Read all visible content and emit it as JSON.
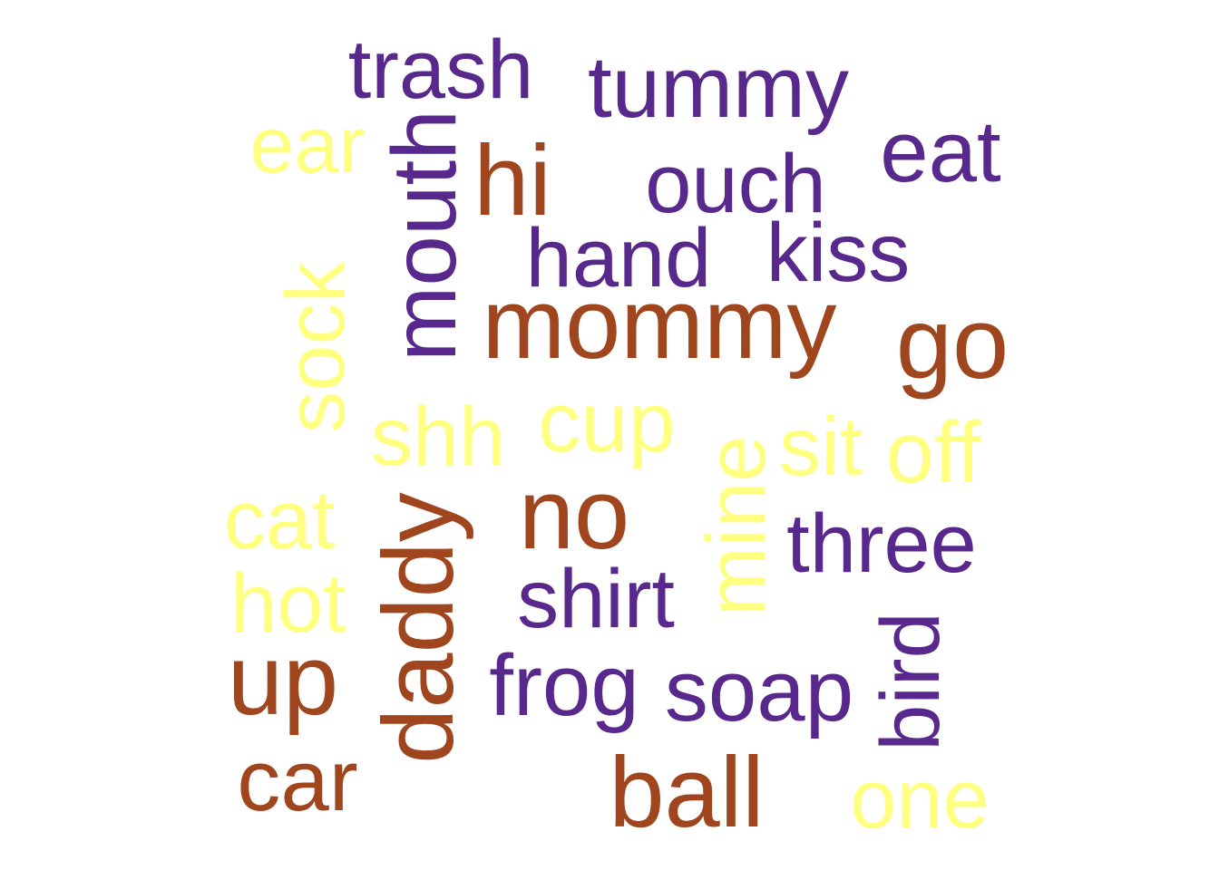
{
  "colors": {
    "purple": "#58288C",
    "brown": "#A0461E",
    "yellow": "#FFFF80"
  },
  "words": [
    {
      "text": "trash",
      "color": "purple"
    },
    {
      "text": "tummy",
      "color": "purple"
    },
    {
      "text": "ear",
      "color": "yellow"
    },
    {
      "text": "mouth",
      "color": "purple"
    },
    {
      "text": "hi",
      "color": "brown"
    },
    {
      "text": "ouch",
      "color": "purple"
    },
    {
      "text": "eat",
      "color": "purple"
    },
    {
      "text": "hand",
      "color": "purple"
    },
    {
      "text": "kiss",
      "color": "purple"
    },
    {
      "text": "sock",
      "color": "yellow"
    },
    {
      "text": "mommy",
      "color": "brown"
    },
    {
      "text": "go",
      "color": "brown"
    },
    {
      "text": "shh",
      "color": "yellow"
    },
    {
      "text": "cup",
      "color": "yellow"
    },
    {
      "text": "mine",
      "color": "yellow"
    },
    {
      "text": "sit",
      "color": "yellow"
    },
    {
      "text": "off",
      "color": "yellow"
    },
    {
      "text": "cat",
      "color": "yellow"
    },
    {
      "text": "daddy",
      "color": "brown"
    },
    {
      "text": "no",
      "color": "brown"
    },
    {
      "text": "three",
      "color": "purple"
    },
    {
      "text": "hot",
      "color": "yellow"
    },
    {
      "text": "shirt",
      "color": "purple"
    },
    {
      "text": "up",
      "color": "brown"
    },
    {
      "text": "frog",
      "color": "purple"
    },
    {
      "text": "soap",
      "color": "purple"
    },
    {
      "text": "bird",
      "color": "purple"
    },
    {
      "text": "car",
      "color": "brown"
    },
    {
      "text": "ball",
      "color": "brown"
    },
    {
      "text": "one",
      "color": "yellow"
    }
  ]
}
